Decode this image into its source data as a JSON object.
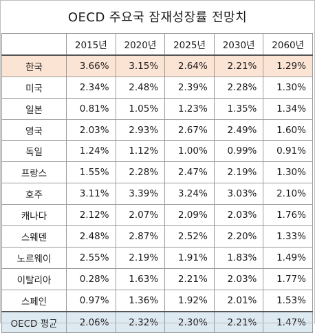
{
  "title": "OECD 주요국 잠재성장률 전망치",
  "columns": [
    "2015년",
    "2020년",
    "2025년",
    "2030년",
    "2060년"
  ],
  "rows": [
    {
      "name": "한국",
      "values": [
        "3.66%",
        "3.15%",
        "2.64%",
        "2.21%",
        "1.29%"
      ]
    },
    {
      "name": "미국",
      "values": [
        "2.34%",
        "2.48%",
        "2.39%",
        "2.28%",
        "1.30%"
      ]
    },
    {
      "name": "일본",
      "values": [
        "0.81%",
        "1.05%",
        "1.23%",
        "1.35%",
        "1.34%"
      ]
    },
    {
      "name": "영국",
      "values": [
        "2.03%",
        "2.93%",
        "2.67%",
        "2.49%",
        "1.60%"
      ]
    },
    {
      "name": "독일",
      "values": [
        "1.24%",
        "1.12%",
        "1.00%",
        "0.99%",
        "0.91%"
      ]
    },
    {
      "name": "프랑스",
      "values": [
        "1.55%",
        "2.28%",
        "2.47%",
        "2.19%",
        "1.30%"
      ]
    },
    {
      "name": "호주",
      "values": [
        "3.11%",
        "3.39%",
        "3.24%",
        "3.03%",
        "2.10%"
      ]
    },
    {
      "name": "캐나다",
      "values": [
        "2.12%",
        "2.07%",
        "2.09%",
        "2.03%",
        "1.76%"
      ]
    },
    {
      "name": "스웨덴",
      "values": [
        "2.48%",
        "2.87%",
        "2.52%",
        "2.20%",
        "1.33%"
      ]
    },
    {
      "name": "노르웨이",
      "values": [
        "2.55%",
        "2.19%",
        "1.91%",
        "1.83%",
        "1.49%"
      ]
    },
    {
      "name": "이탈리아",
      "values": [
        "0.28%",
        "1.63%",
        "2.21%",
        "2.03%",
        "1.77%"
      ]
    },
    {
      "name": "스페인",
      "values": [
        "0.97%",
        "1.36%",
        "1.92%",
        "2.01%",
        "1.53%"
      ]
    }
  ],
  "average": {
    "name": "OECD 평균",
    "values": [
      "2.06%",
      "2.32%",
      "2.30%",
      "2.21%",
      "1.47%"
    ]
  },
  "colors": {
    "highlight_row": "#fce4d5",
    "average_row": "#deeaf2"
  }
}
